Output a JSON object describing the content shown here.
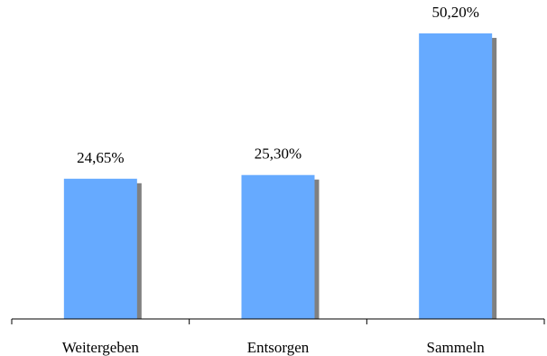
{
  "chart_data": {
    "type": "bar",
    "categories": [
      "Weitergeben",
      "Entsorgen",
      "Sammeln"
    ],
    "values": [
      24.65,
      25.3,
      50.2
    ],
    "data_labels": [
      "24,65%",
      "25,30%",
      "50,20%"
    ],
    "title": "",
    "xlabel": "",
    "ylabel": "",
    "ylim": [
      0,
      54
    ],
    "grid": false,
    "legend": "none",
    "colors": {
      "bar": "#66aaff",
      "shadow": "#808080",
      "axis": "#000000"
    }
  }
}
